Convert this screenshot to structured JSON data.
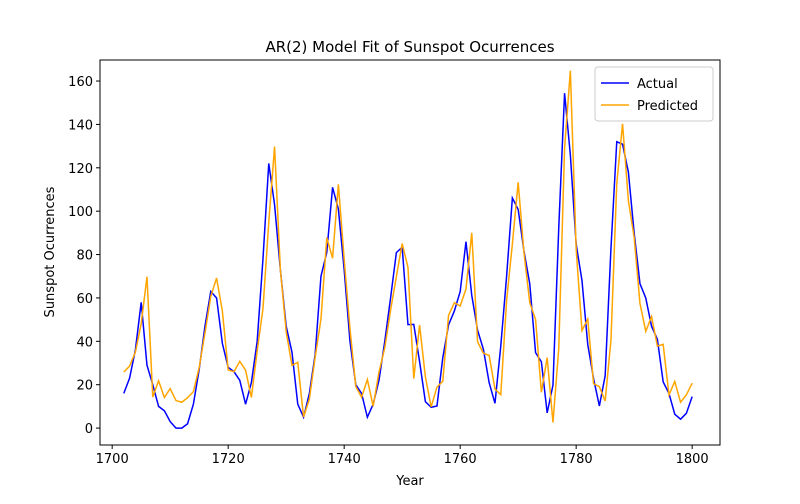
{
  "chart_data": {
    "type": "line",
    "title": "AR(2) Model Fit of Sunspot Ocurrences",
    "xlabel": "Year",
    "ylabel": "Sunspot Ocurrences",
    "x": [
      1702,
      1703,
      1704,
      1705,
      1706,
      1707,
      1708,
      1709,
      1710,
      1711,
      1712,
      1713,
      1714,
      1715,
      1716,
      1717,
      1718,
      1719,
      1720,
      1721,
      1722,
      1723,
      1724,
      1725,
      1726,
      1727,
      1728,
      1729,
      1730,
      1731,
      1732,
      1733,
      1734,
      1735,
      1736,
      1737,
      1738,
      1739,
      1740,
      1741,
      1742,
      1743,
      1744,
      1745,
      1746,
      1747,
      1748,
      1749,
      1750,
      1751,
      1752,
      1753,
      1754,
      1755,
      1756,
      1757,
      1758,
      1759,
      1760,
      1761,
      1762,
      1763,
      1764,
      1765,
      1766,
      1767,
      1768,
      1769,
      1770,
      1771,
      1772,
      1773,
      1774,
      1775,
      1776,
      1777,
      1778,
      1779,
      1780,
      1781,
      1782,
      1783,
      1784,
      1785,
      1786,
      1787,
      1788,
      1789,
      1790,
      1791,
      1792,
      1793,
      1794,
      1795,
      1796,
      1797,
      1798,
      1799,
      1800
    ],
    "series": [
      {
        "name": "Actual",
        "color": "#0000ff",
        "values": [
          16,
          23,
          36,
          58,
          29,
          20,
          10,
          8,
          3,
          0,
          0,
          2,
          11,
          27,
          47,
          63,
          60,
          39,
          28,
          26,
          22,
          11,
          21,
          40,
          78,
          122,
          103,
          73,
          47,
          35,
          11,
          5,
          16,
          34,
          70,
          81,
          111,
          101,
          73,
          40,
          20,
          16,
          5,
          11,
          22,
          40,
          60,
          80.9,
          83.4,
          47.7,
          47.8,
          30.7,
          12.2,
          9.6,
          10.2,
          32.4,
          47.6,
          54,
          62.9,
          85.9,
          61.2,
          45.1,
          36.4,
          20.9,
          11.4,
          37.8,
          69.8,
          106.1,
          100.8,
          81.6,
          66.5,
          34.8,
          30.6,
          7,
          19.8,
          92.5,
          154.4,
          125.9,
          84.8,
          68.1,
          38.5,
          22.8,
          10.2,
          24.1,
          82.9,
          132,
          130.9,
          118.1,
          89.9,
          66.6,
          60,
          46.9,
          41,
          21.3,
          16,
          6.4,
          4.1,
          6.8,
          14.5
        ]
      },
      {
        "name": "Predicted",
        "color": "#ffa500",
        "values": [
          25.8,
          28.6,
          35,
          48.1,
          69.8,
          14.3,
          21.8,
          14.1,
          18.2,
          12.7,
          11.9,
          14,
          16.8,
          27.9,
          43.9,
          60.7,
          69.2,
          53.9,
          26.8,
          26,
          30.8,
          26.7,
          14.1,
          35.6,
          55.1,
          94.8,
          129.8,
          73,
          44.4,
          28.9,
          30.3,
          5.1,
          13.4,
          32.7,
          50.3,
          87.8,
          78.3,
          112.4,
          77.8,
          45.8,
          19.2,
          14.2,
          22.4,
          10,
          25.8,
          37,
          54.4,
          69.8,
          85.1,
          74.1,
          22.8,
          47.5,
          23.7,
          9.8,
          18.9,
          21.6,
          52,
          57.8,
          56.3,
          64.1,
          90,
          39.8,
          34.5,
          33.5,
          18,
          15.4,
          58.6,
          84.9,
          113.3,
          80.9,
          57.8,
          50.1,
          16.5,
          32.5,
          2.6,
          36.7,
          128.9,
          164.8,
          82.5,
          45,
          50.2,
          20.5,
          19.1,
          12.5,
          40.5,
          112.6,
          140.3,
          104.9,
          87.9,
          57.5,
          44.6,
          51.4,
          37.8,
          38.6,
          15.3,
          21.5,
          11.9,
          15.3,
          20.7
        ]
      }
    ],
    "xlim": [
      1697.9,
      1804.8
    ],
    "xticks": [
      1700,
      1720,
      1740,
      1760,
      1780,
      1800
    ],
    "ylim": [
      -7.8,
      169.7
    ],
    "yticks": [
      0,
      20,
      40,
      60,
      80,
      100,
      120,
      140,
      160
    ],
    "legend": "upper right",
    "grid": false
  }
}
